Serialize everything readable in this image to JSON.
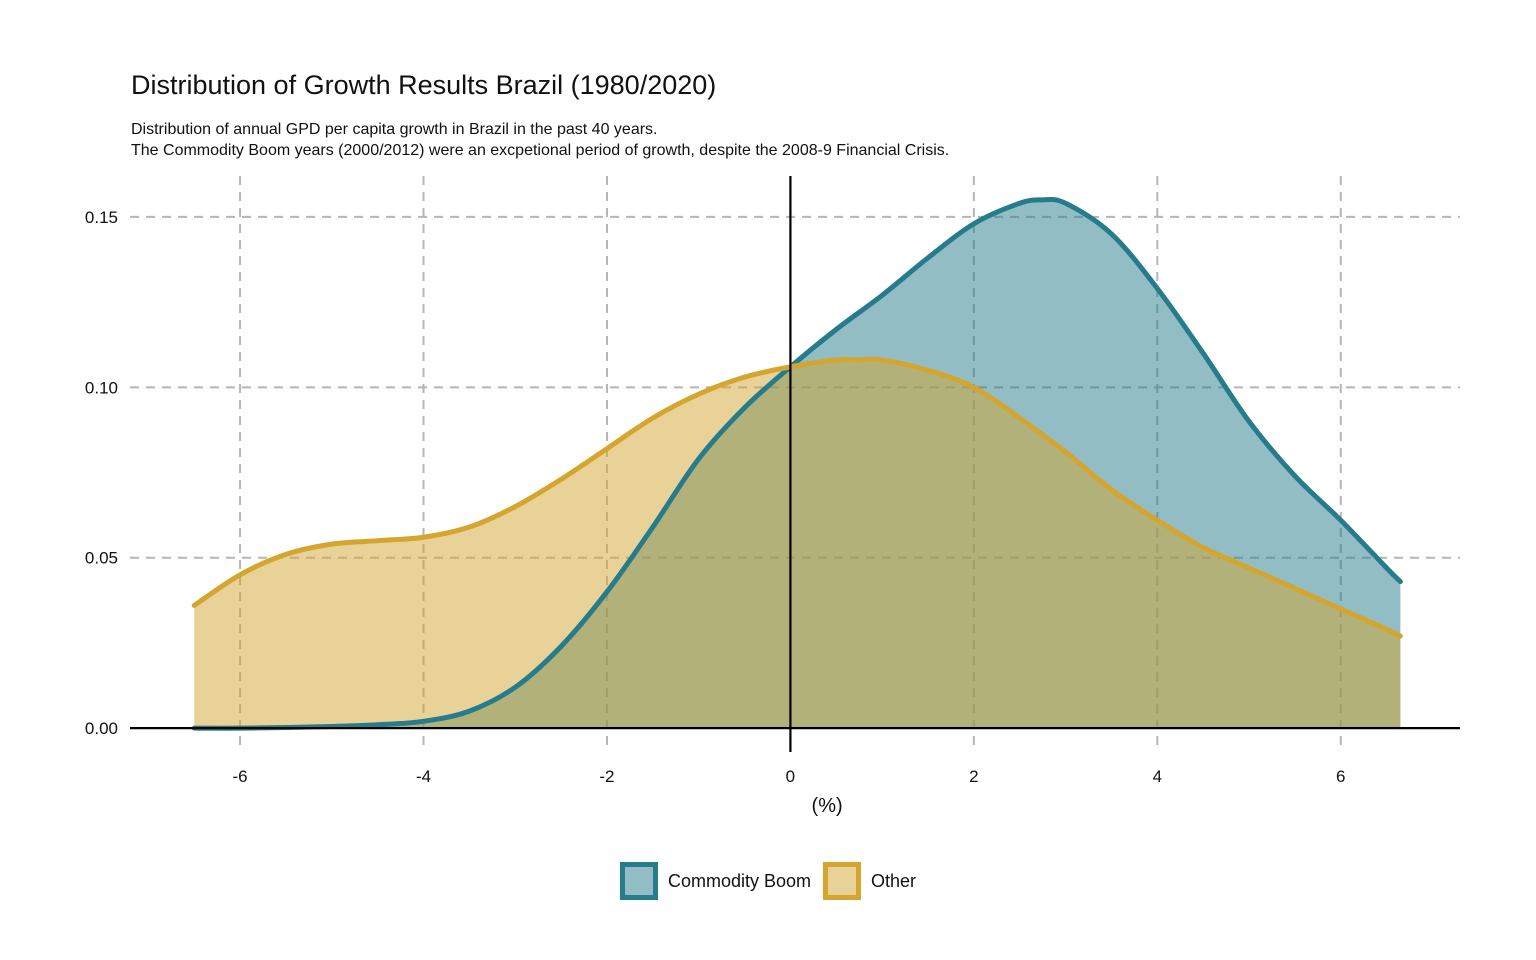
{
  "chart_data": {
    "type": "area",
    "title": "Distribution of Growth Results Brazil (1980/2020)",
    "subtitle_lines": [
      "Distribution of annual GPD per capita growth in Brazil in the past 40 years.",
      "The Commodity Boom years (2000/2012) were an excpetional period of growth, despite the 2008-9 Financial Crisis."
    ],
    "xlabel": "(%)",
    "ylabel": "",
    "xlim": [
      -7.2,
      7.3
    ],
    "ylim": [
      -0.007,
      0.162
    ],
    "x_ticks": [
      -6,
      -4,
      -2,
      0,
      2,
      4,
      6
    ],
    "x_tick_labels": [
      "-6",
      "-4",
      "-2",
      "0",
      "2",
      "4",
      "6"
    ],
    "y_ticks": [
      0,
      0.05,
      0.1,
      0.15
    ],
    "y_tick_labels": [
      "0.00",
      "0.05",
      "0.10",
      "0.15"
    ],
    "grid": "dashed",
    "reference_lines": {
      "vertical_x": 0,
      "horizontal_y": 0
    },
    "legend_position": "bottom",
    "series": [
      {
        "name": "Commodity Boom",
        "line_color": "#267C8B",
        "fill_color": "#267C8B",
        "fill_opacity": 0.5,
        "x": [
          -6.5,
          -6.0,
          -5.5,
          -5.0,
          -4.5,
          -4.0,
          -3.5,
          -3.0,
          -2.5,
          -2.0,
          -1.5,
          -1.0,
          -0.5,
          0.0,
          0.5,
          1.0,
          1.5,
          2.0,
          2.5,
          2.75,
          3.0,
          3.5,
          4.0,
          4.5,
          5.0,
          5.5,
          6.0,
          6.5,
          6.65
        ],
        "y": [
          0.0,
          0.0,
          0.0002,
          0.0005,
          0.001,
          0.002,
          0.005,
          0.012,
          0.024,
          0.04,
          0.059,
          0.079,
          0.094,
          0.106,
          0.117,
          0.127,
          0.138,
          0.148,
          0.154,
          0.155,
          0.154,
          0.145,
          0.129,
          0.11,
          0.09,
          0.074,
          0.061,
          0.047,
          0.043
        ]
      },
      {
        "name": "Other",
        "line_color": "#D4A52F",
        "fill_color": "#D4A52F",
        "fill_opacity": 0.5,
        "x": [
          -6.5,
          -6.0,
          -5.5,
          -5.0,
          -4.5,
          -4.0,
          -3.5,
          -3.0,
          -2.5,
          -2.0,
          -1.5,
          -1.0,
          -0.5,
          0.0,
          0.5,
          0.75,
          1.0,
          1.5,
          2.0,
          2.5,
          3.0,
          3.5,
          4.0,
          4.5,
          5.0,
          5.5,
          6.0,
          6.5,
          6.65
        ],
        "y": [
          0.036,
          0.045,
          0.051,
          0.054,
          0.055,
          0.056,
          0.059,
          0.065,
          0.073,
          0.082,
          0.091,
          0.098,
          0.103,
          0.106,
          0.108,
          0.108,
          0.108,
          0.105,
          0.1,
          0.091,
          0.081,
          0.07,
          0.061,
          0.053,
          0.047,
          0.041,
          0.035,
          0.029,
          0.027
        ]
      }
    ]
  }
}
